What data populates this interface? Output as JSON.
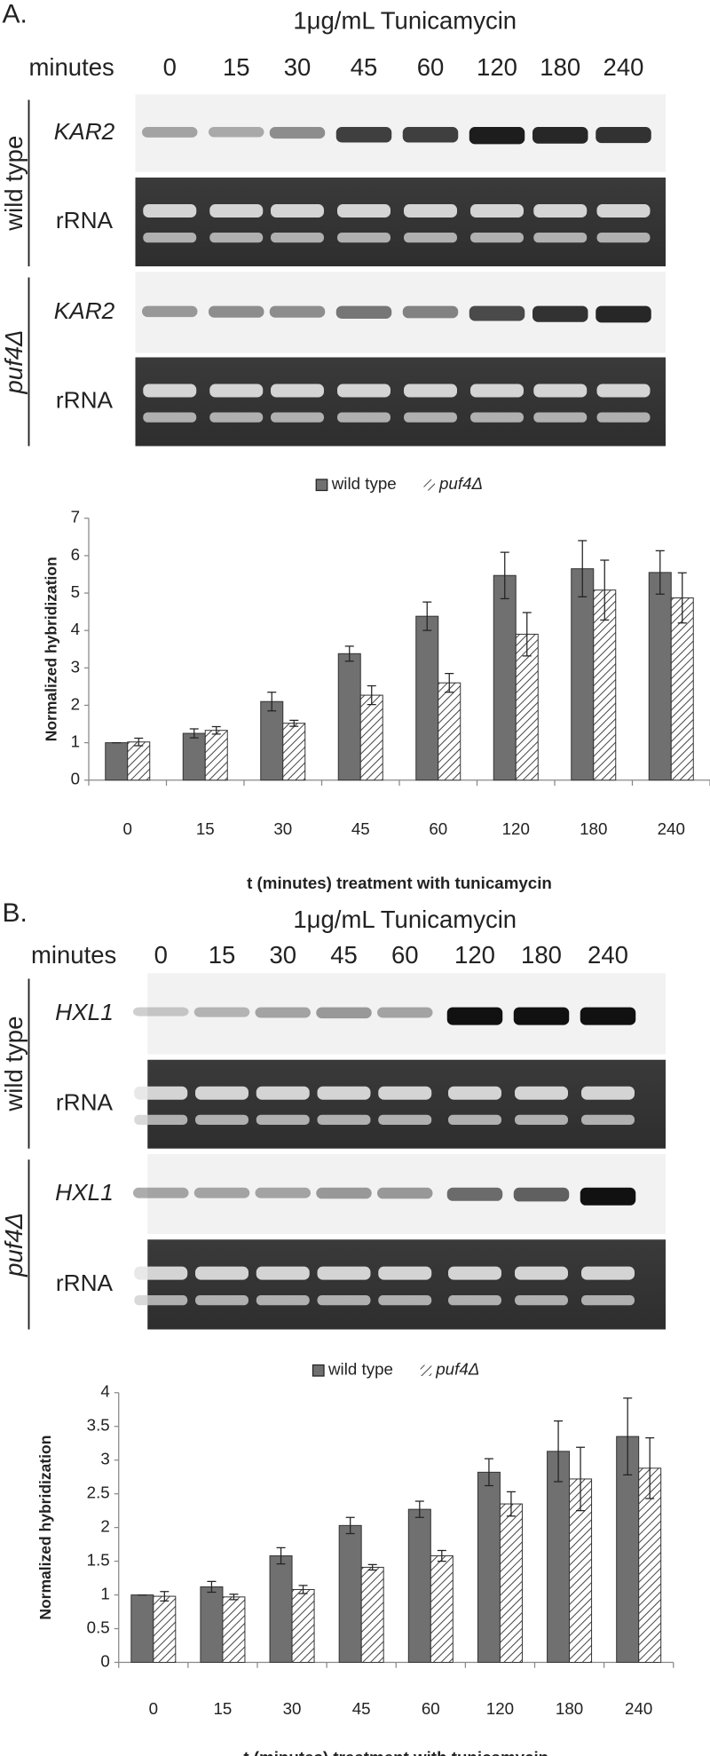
{
  "panels": [
    {
      "label": "A.",
      "treatment": "1μg/mL Tunicamycin",
      "time_label": "minutes",
      "strains": [
        "wild type",
        "puf4Δ"
      ],
      "gene": "KAR2",
      "loading": "rRNA"
    },
    {
      "label": "B.",
      "treatment": "1μg/mL Tunicamycin",
      "time_label": "minutes",
      "strains": [
        "wild type",
        "puf4Δ"
      ],
      "gene": "HXL1",
      "loading": "rRNA"
    }
  ],
  "chart_data": [
    {
      "type": "bar",
      "xlabel": "t (minutes) treatment with tunicamycin",
      "ylabel": "Normalized hybridization",
      "legend": "top",
      "categories": [
        "0",
        "15",
        "30",
        "45",
        "60",
        "120",
        "180",
        "240"
      ],
      "series": [
        {
          "name": "wild type",
          "color": "#707070",
          "pattern": "solid",
          "values": [
            1,
            1.25,
            2.1,
            3.38,
            4.38,
            5.47,
            5.65,
            5.55
          ],
          "errors": [
            0,
            0.12,
            0.25,
            0.2,
            0.38,
            0.62,
            0.75,
            0.58
          ]
        },
        {
          "name": "puf4Δ",
          "color": "#555555",
          "pattern": "hatch",
          "values": [
            1.02,
            1.33,
            1.52,
            2.27,
            2.6,
            3.9,
            5.08,
            4.87
          ],
          "errors": [
            0.1,
            0.1,
            0.08,
            0.25,
            0.25,
            0.58,
            0.8,
            0.67
          ]
        }
      ],
      "ylim": [
        0,
        7
      ],
      "yticks": [
        0,
        1,
        2,
        3,
        4,
        5,
        6,
        7
      ],
      "grid": false
    },
    {
      "type": "bar",
      "xlabel": "t (minutes) treatment with tunicamycin",
      "ylabel": "Normalized hybridization",
      "legend": "top",
      "categories": [
        "0",
        "15",
        "30",
        "45",
        "60",
        "120",
        "180",
        "240"
      ],
      "series": [
        {
          "name": "wild type",
          "color": "#707070",
          "pattern": "solid",
          "values": [
            1,
            1.12,
            1.58,
            2.03,
            2.27,
            2.82,
            3.13,
            3.35
          ],
          "errors": [
            0,
            0.08,
            0.12,
            0.12,
            0.12,
            0.2,
            0.45,
            0.57
          ]
        },
        {
          "name": "puf4Δ",
          "color": "#555555",
          "pattern": "hatch",
          "values": [
            0.98,
            0.97,
            1.08,
            1.41,
            1.58,
            2.35,
            2.72,
            2.88
          ],
          "errors": [
            0.07,
            0.04,
            0.06,
            0.04,
            0.08,
            0.18,
            0.47,
            0.45
          ]
        }
      ],
      "ylim": [
        0,
        4
      ],
      "yticks": [
        0,
        0.5,
        1,
        1.5,
        2,
        2.5,
        3,
        3.5,
        4
      ],
      "grid": false
    }
  ]
}
